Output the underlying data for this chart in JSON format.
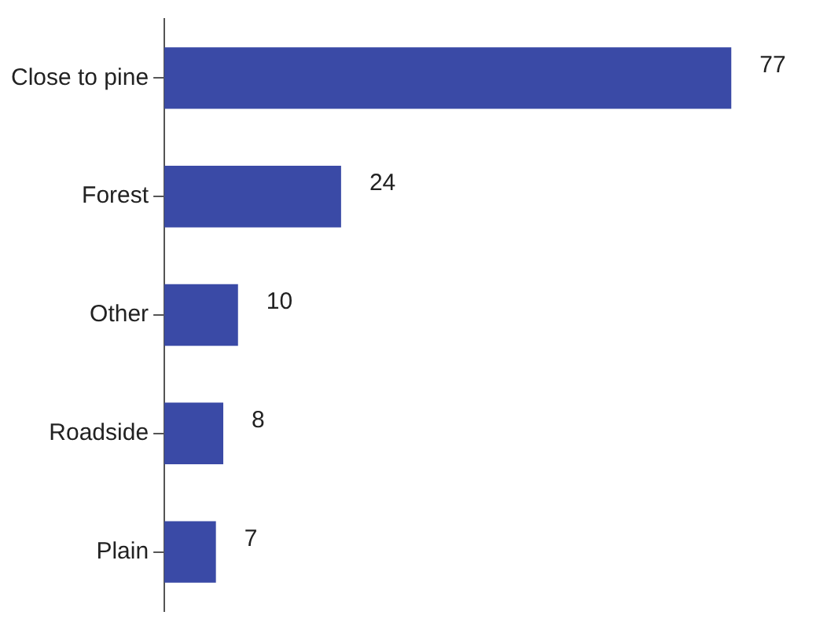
{
  "chart_data": {
    "type": "bar",
    "orientation": "horizontal",
    "tick_labels": "y",
    "categories": [
      "Close to pine",
      "Forest",
      "Other",
      "Roadside",
      "Plain"
    ],
    "values": [
      77,
      24,
      10,
      8,
      7
    ],
    "color": "#3a4aa6",
    "data_labels": true
  }
}
